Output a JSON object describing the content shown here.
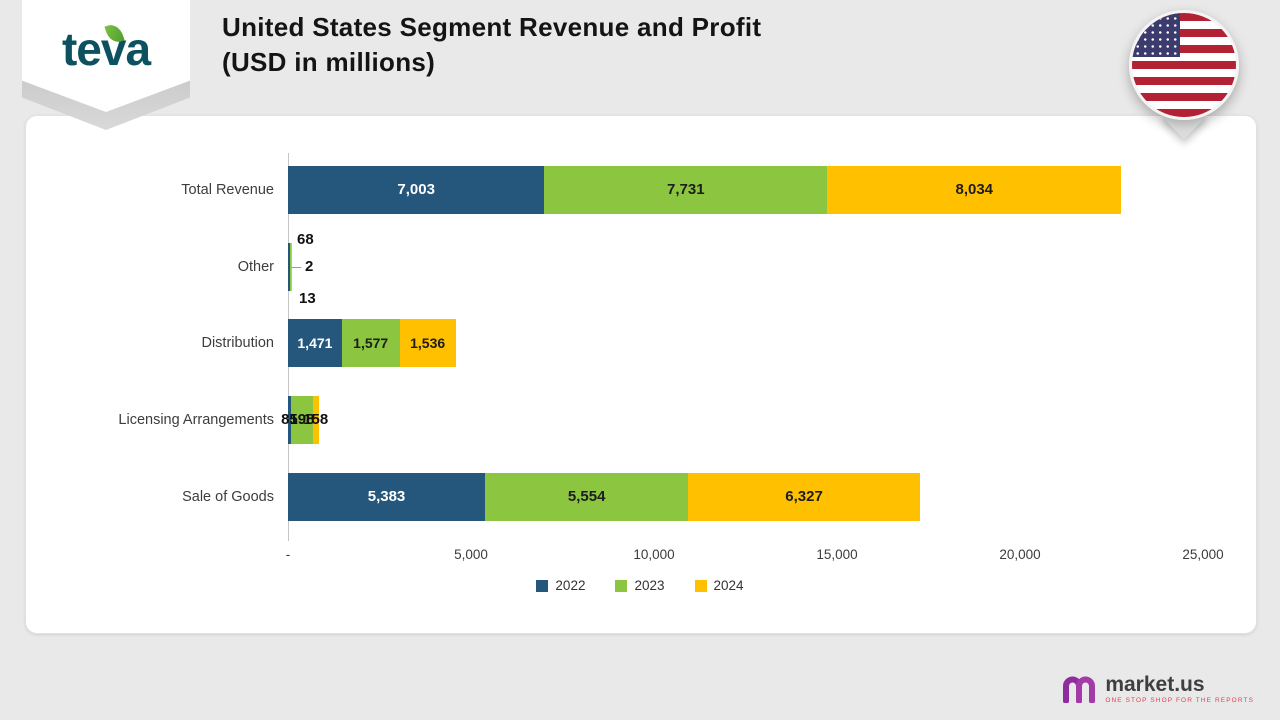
{
  "brand": {
    "logo_text": "teva"
  },
  "header": {
    "title_line1": "United States Segment Revenue and Profit",
    "title_line2": "(USD in millions)"
  },
  "icons": {
    "brand_leaf": "leaf-icon",
    "flag": "us-flag-pin-icon",
    "footer_logo": "market-us-m-icon"
  },
  "chart_data": {
    "type": "bar",
    "orientation": "horizontal",
    "title": "United States Segment Revenue and Profit (USD in millions)",
    "categories": [
      "Total Revenue",
      "Other",
      "Distribution",
      "Licensing Arrangements",
      "Sale of Goods"
    ],
    "series": [
      {
        "name": "2022",
        "color": "#25567b",
        "values": [
          7003,
          68,
          1471,
          81,
          5383
        ],
        "labels": [
          "7,003",
          "68",
          "1,471",
          "81",
          "5,383"
        ]
      },
      {
        "name": "2023",
        "color": "#8cc640",
        "values": [
          7731,
          2,
          1577,
          598,
          5554
        ],
        "labels": [
          "7,731",
          "2",
          "1,577",
          "598",
          "5,554"
        ]
      },
      {
        "name": "2024",
        "color": "#ffc000",
        "values": [
          8034,
          13,
          1536,
          158,
          6327
        ],
        "labels": [
          "8,034",
          "13",
          "1,536",
          "158",
          "6,327"
        ]
      }
    ],
    "x_axis": {
      "min": 0,
      "max": 25000,
      "tick_values": [
        0,
        5000,
        10000,
        15000,
        20000,
        25000
      ],
      "tick_labels": [
        "-",
        "5,000",
        "10,000",
        "15,000",
        "20,000",
        "25,000"
      ]
    },
    "legend": {
      "position": "bottom",
      "entries": [
        "2022",
        "2023",
        "2024"
      ]
    },
    "grid": false
  },
  "footer": {
    "logo_text": "market.us",
    "tagline": "ONE STOP SHOP FOR THE REPORTS"
  }
}
